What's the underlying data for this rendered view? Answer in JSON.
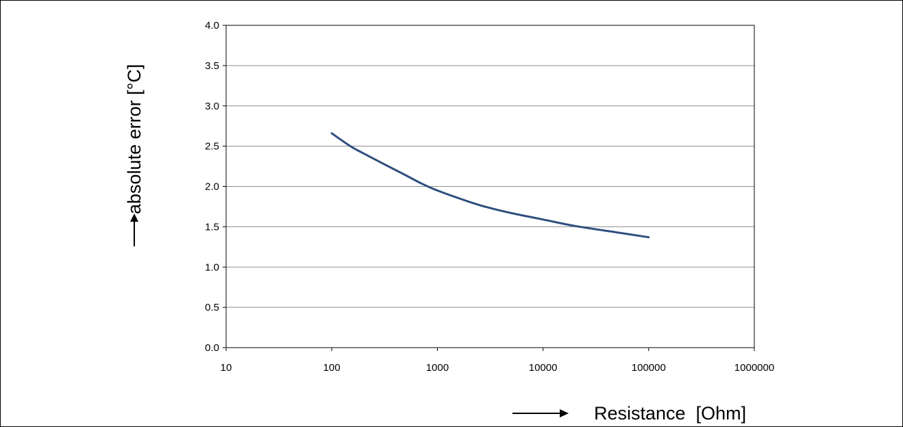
{
  "chart_data": {
    "type": "line",
    "x_scale": "log",
    "x_ticks": [
      "10",
      "100",
      "1000",
      "10000",
      "100000",
      "1000000"
    ],
    "y_ticks": [
      "0.0",
      "0.5",
      "1.0",
      "1.5",
      "2.0",
      "2.5",
      "3.0",
      "3.5",
      "4.0"
    ],
    "xlim": [
      10,
      1000000
    ],
    "ylim": [
      0,
      4
    ],
    "grid": "horizontal",
    "xlabel": "Resistance  [Ohm]",
    "ylabel": "absolute error [°C]",
    "series": [
      {
        "color": "#2e4e7e",
        "points": [
          [
            100,
            2.66
          ],
          [
            150,
            2.5
          ],
          [
            200,
            2.41
          ],
          [
            300,
            2.29
          ],
          [
            500,
            2.14
          ],
          [
            700,
            2.04
          ],
          [
            1000,
            1.95
          ],
          [
            2000,
            1.81
          ],
          [
            3000,
            1.74
          ],
          [
            5000,
            1.67
          ],
          [
            10000,
            1.59
          ],
          [
            20000,
            1.51
          ],
          [
            50000,
            1.43
          ],
          [
            100000,
            1.37
          ]
        ]
      }
    ]
  }
}
